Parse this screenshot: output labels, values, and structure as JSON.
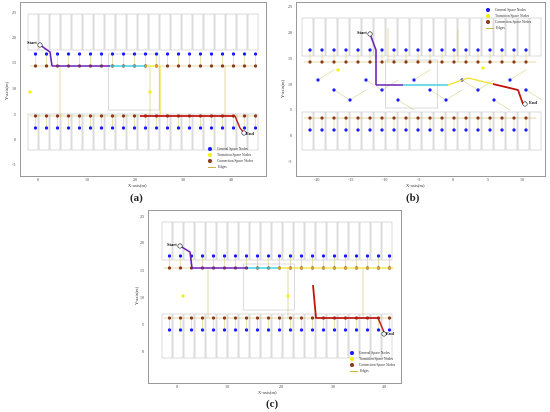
{
  "legend": {
    "general": "General Space Nodes",
    "transition": "Transition Space Nodes",
    "connection": "Connection Space Nodes",
    "edges": "Edges"
  },
  "colors": {
    "general": "#1a1aff",
    "transition": "#f2f20a",
    "connection": "#8b3a1a",
    "edges": "#c9b54a",
    "path_purple": "#6a1fb5",
    "path_cyan": "#40d0e0",
    "path_yellow": "#f0e030",
    "path_red": "#c0140c",
    "path_orange": "#f08020"
  },
  "panels": [
    {
      "caption": "(a)",
      "ylabel": "Y-axis(m)",
      "xlabel": "X-axis(m)",
      "yticks": [
        "25",
        "20",
        "15",
        "10",
        "5",
        "0",
        "-5"
      ],
      "xticks": [
        "0",
        "10",
        "20",
        "30",
        "40"
      ],
      "start": "Start",
      "end": "End"
    },
    {
      "caption": "(b)",
      "ylabel": "Y-axis(m)",
      "xlabel": "X-axis(m)",
      "yticks": [
        "25",
        "20",
        "15",
        "10",
        "5",
        "0",
        "-5"
      ],
      "xticks": [
        "-20",
        "-15",
        "-10",
        "-5",
        "0",
        "5",
        "10"
      ],
      "start": "Start",
      "end": "End"
    },
    {
      "caption": "(c)",
      "ylabel": "Y-axis(m)",
      "xlabel": "X-axis(m)",
      "yticks": [
        "25",
        "20",
        "15",
        "10",
        "5",
        "0"
      ],
      "xticks": [
        "0",
        "10",
        "20",
        "30",
        "40"
      ],
      "start": "Start",
      "end": "End"
    }
  ]
}
